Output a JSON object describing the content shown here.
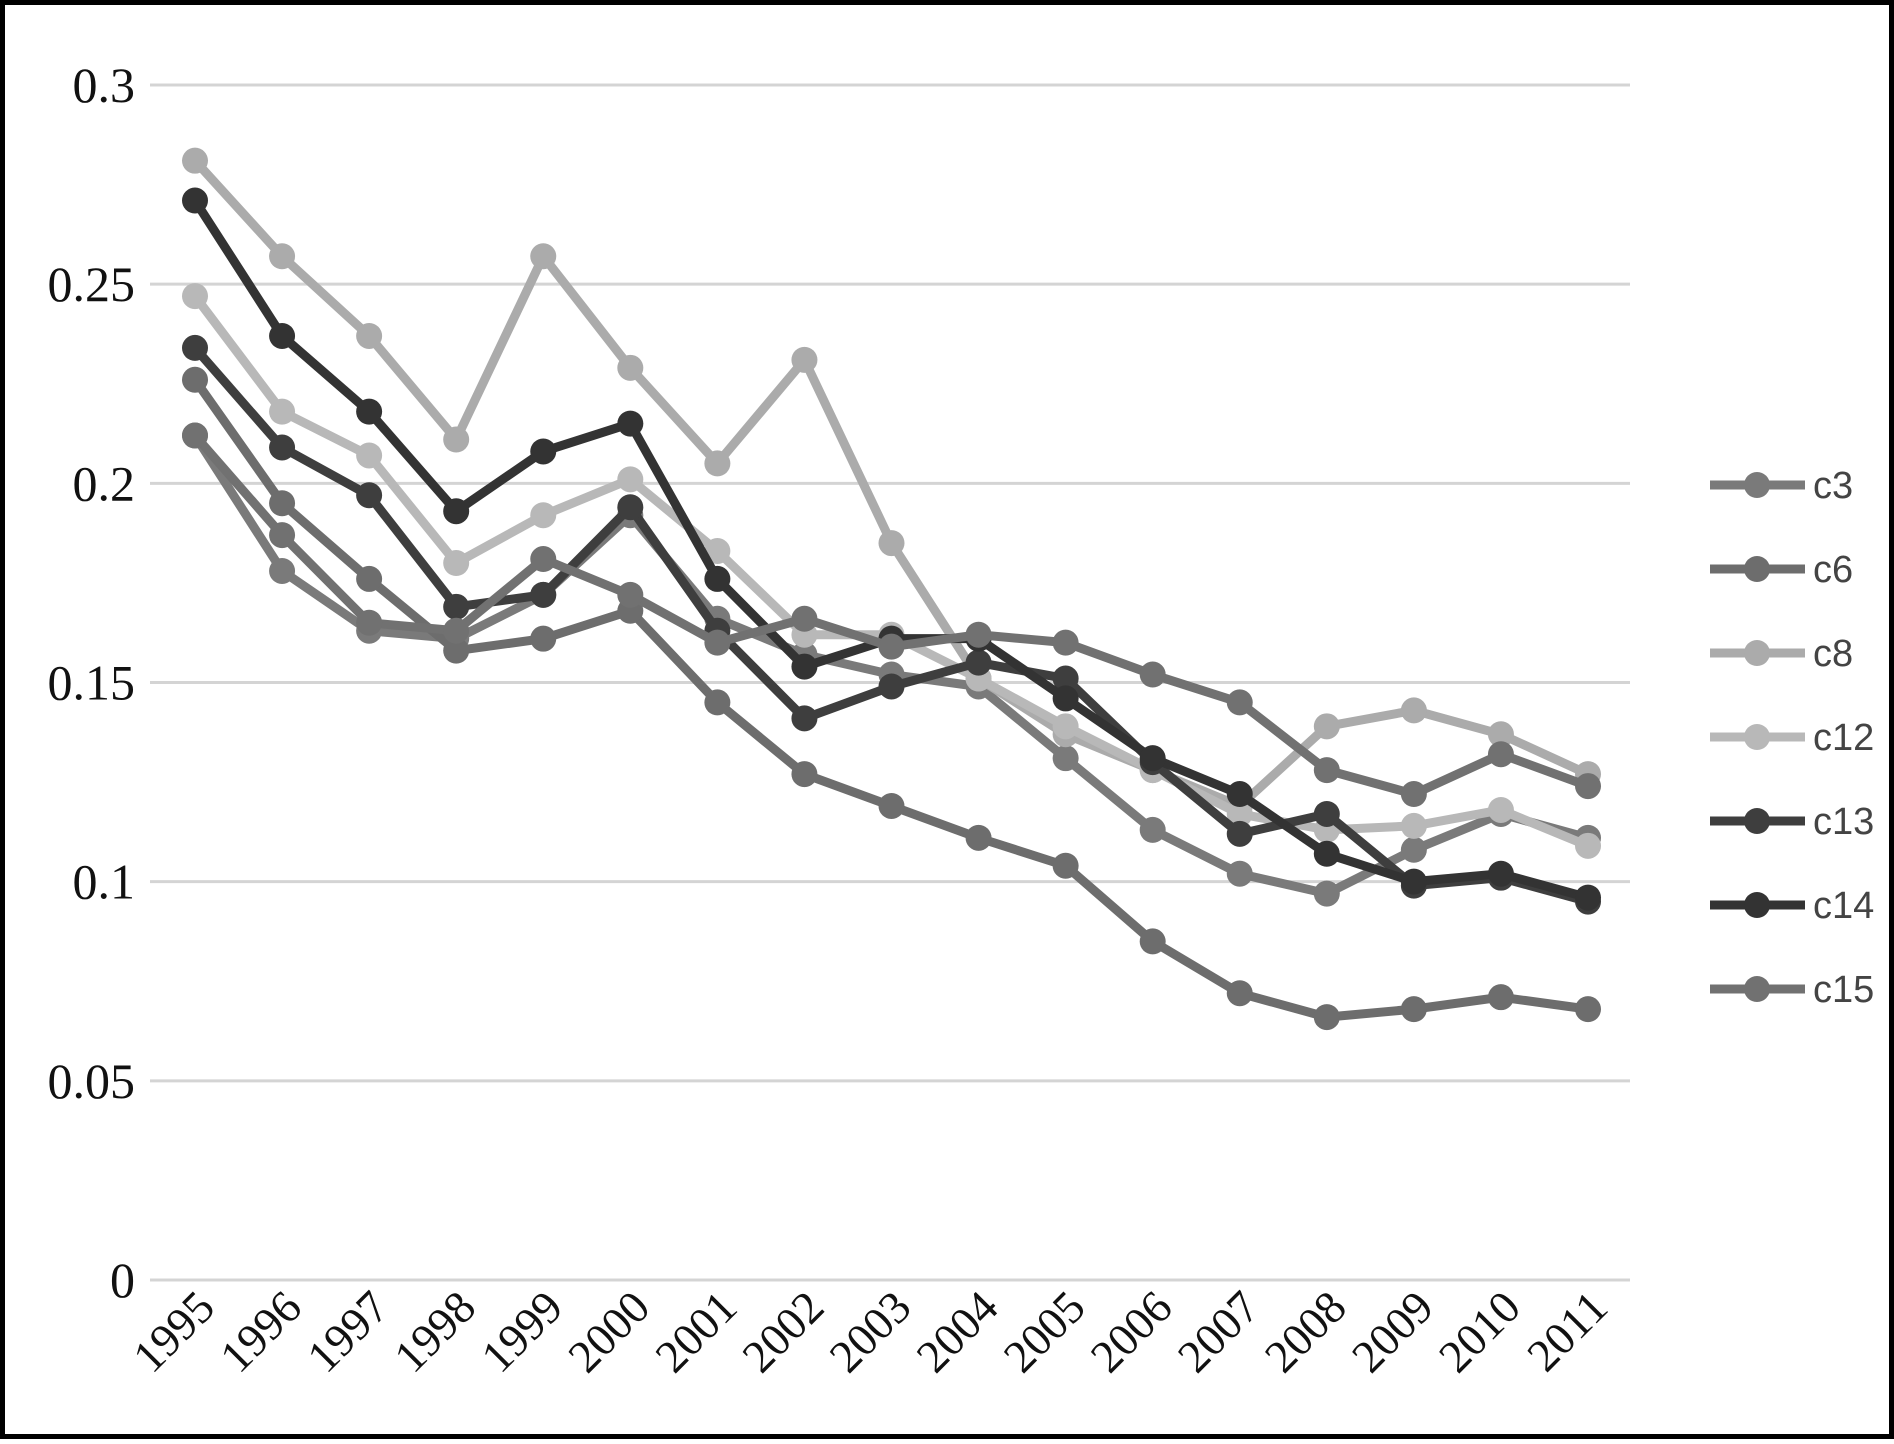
{
  "chart_data": {
    "type": "line",
    "title": "",
    "xlabel": "",
    "ylabel": "",
    "ylim": [
      0,
      0.3
    ],
    "yticks": [
      0,
      0.05,
      0.1,
      0.15,
      0.2,
      0.25,
      0.3
    ],
    "ytick_labels": [
      "0",
      "0.05",
      "0.1",
      "0.15",
      "0.2",
      "0.25",
      "0.3"
    ],
    "grid": "horizontal",
    "legend_position": "right",
    "x": [
      "1995",
      "1996",
      "1997",
      "1998",
      "1999",
      "2000",
      "2001",
      "2002",
      "2003",
      "2004",
      "2005",
      "2006",
      "2007",
      "2008",
      "2009",
      "2010",
      "2011"
    ],
    "series": [
      {
        "name": "c3",
        "color": "#7a7a7a",
        "values": [
          0.212,
          0.178,
          0.163,
          0.161,
          0.172,
          0.192,
          0.166,
          0.157,
          0.152,
          0.149,
          0.131,
          0.113,
          0.102,
          0.097,
          0.108,
          0.117,
          0.111
        ]
      },
      {
        "name": "c6",
        "color": "#6d6d6d",
        "values": [
          0.226,
          0.195,
          0.176,
          0.158,
          0.161,
          0.168,
          0.145,
          0.127,
          0.119,
          0.111,
          0.104,
          0.085,
          0.072,
          0.066,
          0.068,
          0.071,
          0.068
        ]
      },
      {
        "name": "c8",
        "color": "#ababab",
        "values": [
          0.281,
          0.257,
          0.237,
          0.211,
          0.257,
          0.229,
          0.205,
          0.231,
          0.185,
          0.151,
          0.137,
          0.128,
          0.119,
          0.139,
          0.143,
          0.137,
          0.127
        ]
      },
      {
        "name": "c12",
        "color": "#b8b8b8",
        "values": [
          0.247,
          0.218,
          0.207,
          0.18,
          0.192,
          0.201,
          0.183,
          0.162,
          0.162,
          0.151,
          0.139,
          0.128,
          0.117,
          0.113,
          0.114,
          0.118,
          0.109
        ]
      },
      {
        "name": "c13",
        "color": "#3e3e3e",
        "values": [
          0.234,
          0.209,
          0.197,
          0.169,
          0.172,
          0.194,
          0.163,
          0.141,
          0.149,
          0.155,
          0.151,
          0.13,
          0.112,
          0.117,
          0.099,
          0.101,
          0.095
        ]
      },
      {
        "name": "c14",
        "color": "#333333",
        "values": [
          0.271,
          0.237,
          0.218,
          0.193,
          0.208,
          0.215,
          0.176,
          0.154,
          0.161,
          0.161,
          0.146,
          0.131,
          0.122,
          0.107,
          0.1,
          0.102,
          0.096
        ]
      },
      {
        "name": "c15",
        "color": "#717171",
        "values": [
          0.212,
          0.187,
          0.165,
          0.163,
          0.181,
          0.172,
          0.16,
          0.166,
          0.159,
          0.162,
          0.16,
          0.152,
          0.145,
          0.128,
          0.122,
          0.132,
          0.124
        ]
      }
    ]
  }
}
